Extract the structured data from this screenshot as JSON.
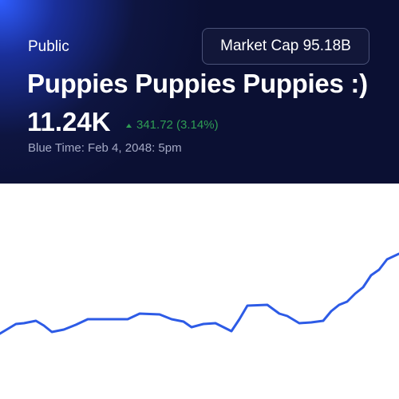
{
  "header": {
    "badge": "Public",
    "market_cap": "Market Cap 95.18B",
    "title": "Puppies Puppies Puppies :)",
    "price": "11.24K",
    "change": "341.72 (3.14%)",
    "time": "Blue Time: Feb 4, 2048: 5pm"
  },
  "chart_data": {
    "type": "line",
    "color": "#2d5be6",
    "x": [
      0,
      10,
      20,
      30,
      45,
      55,
      65,
      80,
      95,
      110,
      130,
      160,
      175,
      200,
      215,
      230,
      240,
      255,
      270,
      290,
      300,
      310,
      335,
      350,
      360,
      375,
      390,
      405,
      415,
      425,
      435,
      445,
      455,
      465,
      475,
      485,
      500
    ],
    "values": [
      82,
      88,
      94,
      95,
      98,
      92,
      84,
      87,
      93,
      100,
      100,
      100,
      107,
      106,
      100,
      97,
      90,
      94,
      95,
      85,
      100,
      117,
      118,
      107,
      104,
      95,
      96,
      98,
      110,
      118,
      122,
      132,
      140,
      155,
      162,
      175,
      182
    ],
    "xlim": [
      0,
      500
    ],
    "ylim": [
      0,
      270
    ]
  }
}
